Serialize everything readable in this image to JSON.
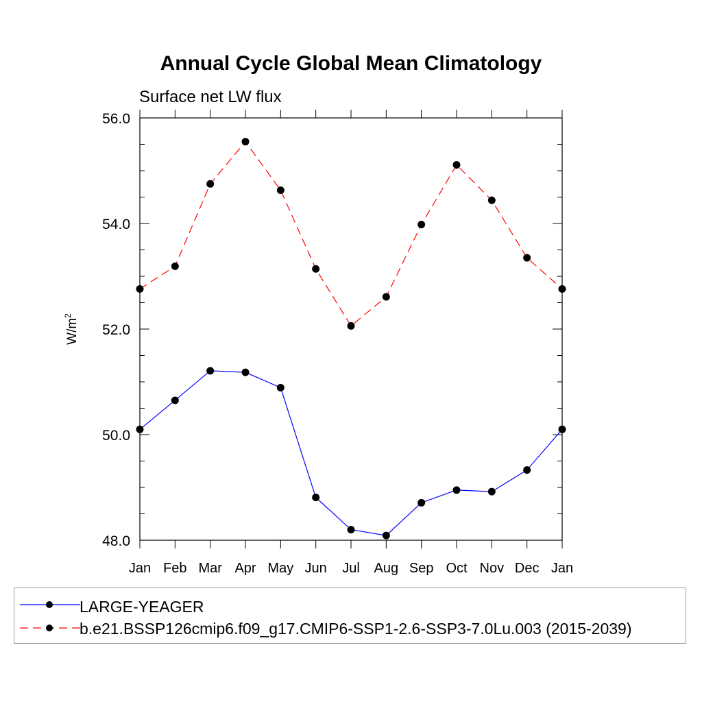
{
  "chart_data": {
    "type": "line",
    "title": "Annual Cycle Global Mean Climatology",
    "subtitle": "Surface net LW flux",
    "ylabel_base": "W/m",
    "ylabel_sup": "2",
    "categories": [
      "Jan",
      "Feb",
      "Mar",
      "Apr",
      "May",
      "Jun",
      "Jul",
      "Aug",
      "Sep",
      "Oct",
      "Nov",
      "Dec",
      "Jan"
    ],
    "ylim": [
      48.0,
      56.0
    ],
    "yticks": [
      "48.0",
      "50.0",
      "52.0",
      "54.0",
      "56.0"
    ],
    "grid": false,
    "legend_position": "bottom",
    "series": [
      {
        "name": "LARGE-YEAGER",
        "color": "#0000ff",
        "dash": "solid",
        "values": [
          50.1,
          50.65,
          51.21,
          51.18,
          50.89,
          48.81,
          48.2,
          48.09,
          48.71,
          48.95,
          48.92,
          49.33,
          50.1
        ]
      },
      {
        "name": "b.e21.BSSP126cmip6.f09_g17.CMIP6-SSP1-2.6-SSP3-7.0Lu.003 (2015-2039)",
        "color": "#ff0000",
        "dash": "dashed",
        "values": [
          52.76,
          53.19,
          54.75,
          55.55,
          54.63,
          53.14,
          52.06,
          52.61,
          53.98,
          55.11,
          54.44,
          53.35,
          52.76
        ]
      }
    ]
  }
}
